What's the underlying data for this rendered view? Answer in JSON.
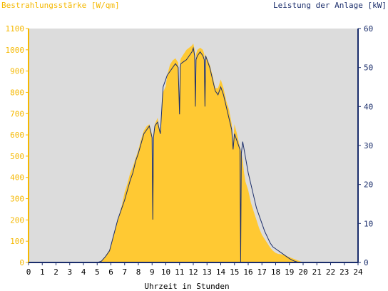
{
  "chart_data": {
    "type": "area",
    "title": "",
    "left_axis": {
      "label": "Bestrahlungsstärke [W/qm]",
      "range": [
        0,
        1100
      ],
      "ticks": [
        0,
        100,
        200,
        300,
        400,
        500,
        600,
        700,
        800,
        900,
        1000,
        1100
      ],
      "color": "#f5b800"
    },
    "right_axis": {
      "label": "Leistung der Anlage [kW]",
      "range": [
        0,
        60
      ],
      "ticks": [
        0,
        10,
        20,
        30,
        40,
        50,
        60
      ],
      "color": "#1a2d6b"
    },
    "x_axis": {
      "label": "Uhrzeit in Stunden",
      "range": [
        0,
        24
      ],
      "ticks": [
        0,
        1,
        2,
        3,
        4,
        5,
        6,
        7,
        8,
        9,
        10,
        11,
        12,
        13,
        14,
        15,
        16,
        17,
        18,
        19,
        20,
        21,
        22,
        23,
        24
      ]
    },
    "grid": false,
    "background": "#dcdcdc",
    "series": [
      {
        "axis": "left",
        "kind": "area",
        "color": "#ffc933",
        "x": [
          0,
          5.0,
          5.3,
          5.6,
          5.9,
          6.2,
          6.5,
          6.8,
          7.0,
          7.2,
          7.4,
          7.6,
          7.8,
          8.0,
          8.2,
          8.4,
          8.6,
          8.8,
          9.0,
          9.05,
          9.1,
          9.2,
          9.4,
          9.6,
          9.8,
          10.0,
          10.1,
          10.3,
          10.5,
          10.7,
          10.9,
          11.0,
          11.05,
          11.1,
          11.3,
          11.5,
          11.7,
          11.9,
          12.0,
          12.1,
          12.15,
          12.2,
          12.3,
          12.5,
          12.7,
          12.8,
          12.85,
          12.9,
          13.0,
          13.2,
          13.4,
          13.6,
          13.8,
          14.0,
          14.2,
          14.4,
          14.6,
          14.8,
          14.9,
          15.0,
          15.2,
          15.4,
          15.5,
          15.6,
          15.7,
          15.8,
          16.0,
          16.2,
          16.4,
          16.6,
          16.8,
          17.0,
          17.2,
          17.4,
          17.6,
          17.8,
          18.0,
          18.2,
          18.4,
          18.6,
          18.8,
          19.0,
          19.2,
          19.4,
          19.6,
          19.8,
          20.0,
          20.2,
          24
        ],
        "y": [
          0,
          0,
          8,
          30,
          60,
          130,
          200,
          270,
          330,
          370,
          420,
          450,
          490,
          530,
          580,
          620,
          640,
          650,
          600,
          230,
          600,
          650,
          680,
          600,
          800,
          830,
          880,
          930,
          950,
          960,
          940,
          720,
          950,
          960,
          980,
          1000,
          1010,
          1020,
          1030,
          1000,
          760,
          980,
          1000,
          1010,
          1000,
          980,
          720,
          980,
          960,
          930,
          880,
          820,
          820,
          860,
          820,
          760,
          720,
          650,
          560,
          650,
          600,
          540,
          520,
          480,
          420,
          380,
          340,
          280,
          240,
          200,
          160,
          130,
          110,
          90,
          70,
          55,
          45,
          40,
          38,
          35,
          30,
          25,
          20,
          15,
          10,
          5,
          2,
          0,
          0
        ]
      },
      {
        "axis": "right",
        "kind": "line",
        "color": "#1a2d6b",
        "x": [
          0,
          5.0,
          5.3,
          5.6,
          5.9,
          6.2,
          6.5,
          6.8,
          7.0,
          7.2,
          7.4,
          7.6,
          7.8,
          8.0,
          8.2,
          8.4,
          8.6,
          8.8,
          9.0,
          9.05,
          9.1,
          9.2,
          9.4,
          9.6,
          9.8,
          10.0,
          10.1,
          10.3,
          10.5,
          10.7,
          10.9,
          11.0,
          11.05,
          11.1,
          11.3,
          11.5,
          11.7,
          11.9,
          12.0,
          12.1,
          12.15,
          12.2,
          12.3,
          12.5,
          12.7,
          12.8,
          12.85,
          12.9,
          13.0,
          13.2,
          13.4,
          13.6,
          13.8,
          14.0,
          14.2,
          14.4,
          14.6,
          14.8,
          14.9,
          15.0,
          15.2,
          15.4,
          15.45,
          15.5,
          15.6,
          15.7,
          15.8,
          16.0,
          16.2,
          16.4,
          16.6,
          16.8,
          17.0,
          17.2,
          17.4,
          17.6,
          17.8,
          18.0,
          18.2,
          18.4,
          18.6,
          18.8,
          19.0,
          19.2,
          19.4,
          19.6,
          19.8,
          20.0,
          20.2,
          24
        ],
        "y": [
          0,
          0,
          0.3,
          1.5,
          3,
          7,
          11,
          14,
          16,
          18.5,
          21,
          23,
          26,
          28,
          30.5,
          33,
          34,
          35,
          32,
          11,
          32,
          35,
          36,
          33,
          45,
          47,
          48,
          49,
          50,
          51,
          50,
          38,
          50,
          51,
          51.5,
          52,
          53,
          54,
          55,
          53,
          40,
          52,
          53,
          54,
          53,
          52,
          40,
          53,
          52,
          50,
          47,
          44,
          43,
          45,
          43,
          40,
          37,
          34,
          29,
          33,
          31,
          29,
          0,
          28,
          31,
          29,
          27,
          23,
          20,
          17,
          14,
          12,
          10,
          8,
          6.5,
          5,
          4,
          3.5,
          3,
          2.5,
          2,
          1.5,
          1,
          0.6,
          0.3,
          0.1,
          0,
          0,
          0,
          0
        ]
      }
    ]
  }
}
